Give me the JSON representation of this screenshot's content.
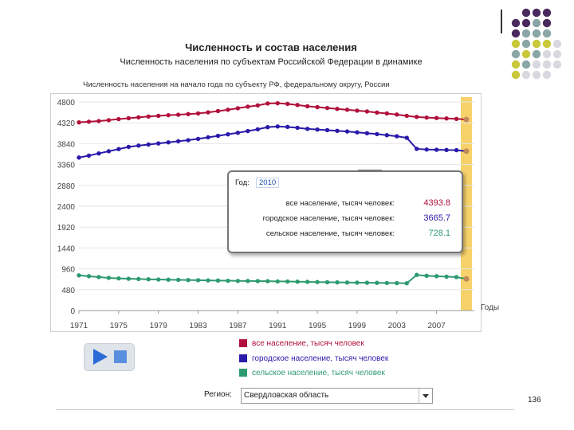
{
  "page": {
    "title": "Численность и состав населения",
    "subtitle": "Численность населения по субъектам Российской Федерации в динамике",
    "hint": "Численность населения на начало года по субъекту РФ, федеральному округу, России",
    "page_number": "136",
    "accent_colors": [
      "#4a2a5e",
      "#8aa6a6",
      "#c8c83a",
      "#d8d8e0"
    ]
  },
  "chart_data": {
    "type": "line",
    "x": [
      1971,
      1972,
      1973,
      1974,
      1975,
      1976,
      1977,
      1978,
      1979,
      1980,
      1981,
      1982,
      1983,
      1984,
      1985,
      1986,
      1987,
      1988,
      1989,
      1990,
      1991,
      1992,
      1993,
      1994,
      1995,
      1996,
      1997,
      1998,
      1999,
      2000,
      2001,
      2002,
      2003,
      2004,
      2005,
      2006,
      2007,
      2008,
      2009,
      2010
    ],
    "series": [
      {
        "name": "все население, тысяч человек",
        "color": "#b0103a",
        "values": [
          4330,
          4345,
          4360,
          4380,
          4405,
          4425,
          4445,
          4465,
          4480,
          4495,
          4505,
          4520,
          4535,
          4560,
          4590,
          4620,
          4655,
          4690,
          4720,
          4765,
          4770,
          4755,
          4730,
          4700,
          4680,
          4660,
          4640,
          4620,
          4600,
          4580,
          4555,
          4535,
          4510,
          4480,
          4455,
          4440,
          4430,
          4420,
          4410,
          4393.8
        ]
      },
      {
        "name": "городское население, тысяч человек",
        "color": "#2a1aaa",
        "values": [
          3520,
          3565,
          3615,
          3665,
          3715,
          3765,
          3795,
          3820,
          3845,
          3870,
          3895,
          3920,
          3950,
          3985,
          4020,
          4055,
          4090,
          4130,
          4170,
          4220,
          4235,
          4225,
          4205,
          4180,
          4165,
          4150,
          4135,
          4120,
          4100,
          4080,
          4060,
          4035,
          4010,
          3975,
          3720,
          3705,
          3700,
          3695,
          3690,
          3665.7
        ]
      },
      {
        "name": "сельское население, тысяч человек",
        "color": "#2e9a70",
        "values": [
          810,
          790,
          770,
          752,
          740,
          732,
          726,
          720,
          714,
          710,
          706,
          702,
          698,
          694,
          690,
          686,
          682,
          680,
          678,
          676,
          670,
          668,
          664,
          660,
          656,
          652,
          648,
          645,
          642,
          640,
          637,
          634,
          631,
          628,
          820,
          800,
          790,
          780,
          770,
          728.1
        ]
      }
    ],
    "yticks": [
      0,
      480,
      960,
      1440,
      1920,
      2400,
      2880,
      3360,
      3840,
      4320,
      4800
    ],
    "xticks": [
      1971,
      1975,
      1979,
      1983,
      1987,
      1991,
      1995,
      1999,
      2003,
      2007
    ],
    "ylim": [
      0,
      4800
    ],
    "xlabel": "Годы",
    "highlight_year": 2010,
    "highlight_color": "#f7d26a"
  },
  "tooltip": {
    "year_label": "Год:",
    "year_value": "2010",
    "rows": [
      {
        "label": "все население, тысяч человек:",
        "value": "4393.8",
        "color": "#b0103a"
      },
      {
        "label": "городское население, тысяч человек:",
        "value": "3665.7",
        "color": "#2a1aaa"
      },
      {
        "label": "сельское население, тысяч человек:",
        "value": "728.1",
        "color": "#2e9a70"
      }
    ]
  },
  "legend": [
    {
      "label": "все население, тысяч человек",
      "color": "#b0103a"
    },
    {
      "label": "городское население, тысяч человек",
      "color": "#2a1aaa"
    },
    {
      "label": "сельское население, тысяч человек",
      "color": "#2e9a70"
    }
  ],
  "controls": {
    "play_icon": "play-icon",
    "stop_icon": "stop-icon"
  },
  "region": {
    "label": "Регион:",
    "value": "Свердловская область"
  }
}
